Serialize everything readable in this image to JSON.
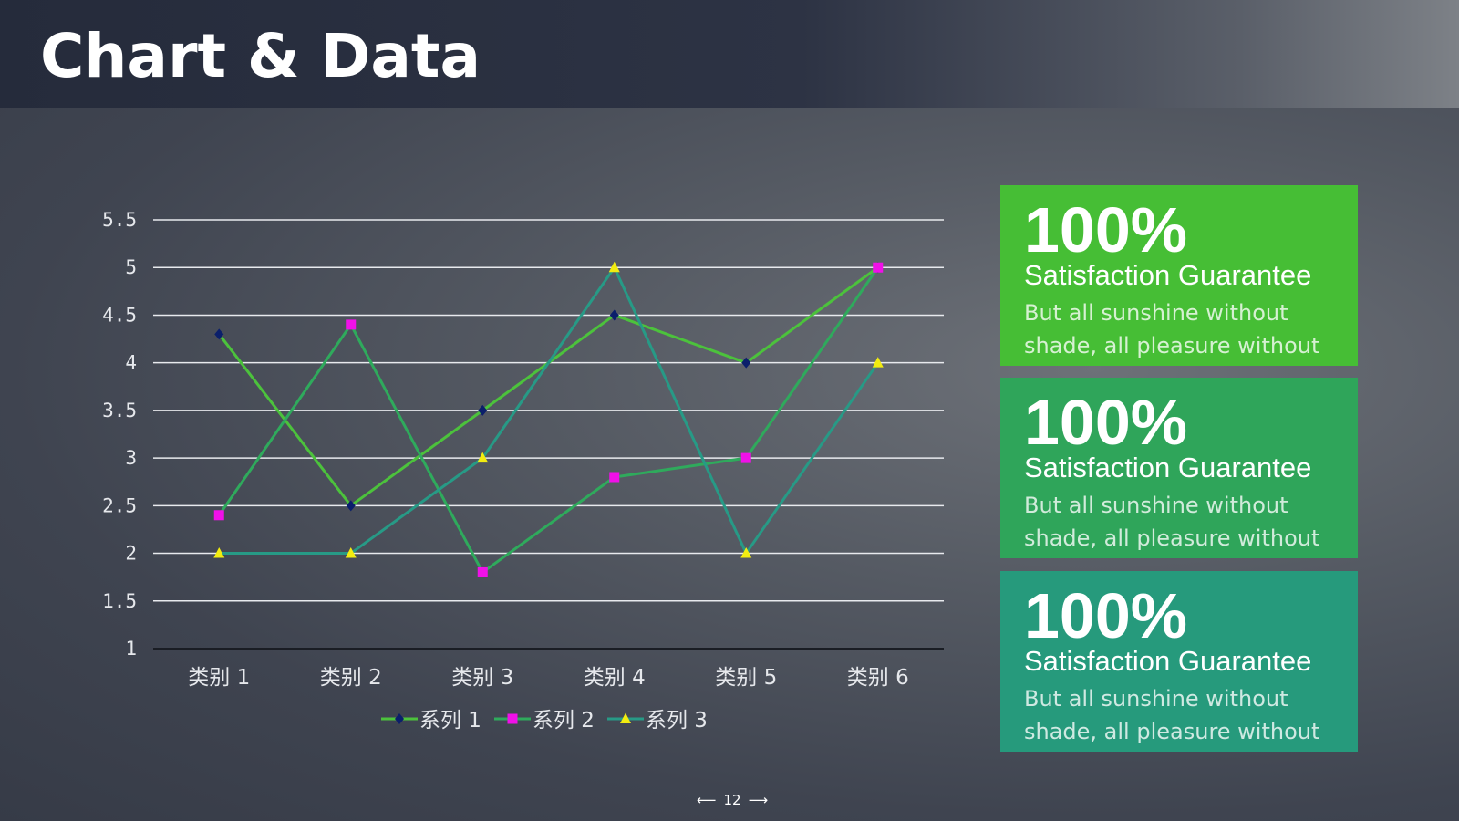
{
  "header": {
    "title": "Chart & Data"
  },
  "chart_data": {
    "type": "line",
    "categories": [
      "类别 1",
      "类别 2",
      "类别 3",
      "类别 4",
      "类别 5",
      "类别 6"
    ],
    "series": [
      {
        "name": "系列 1",
        "values": [
          4.3,
          2.5,
          3.5,
          4.5,
          4.0,
          5.0
        ],
        "color": "#4cc23c",
        "marker": "diamond",
        "marker_color": "#0b1f6b"
      },
      {
        "name": "系列 2",
        "values": [
          2.4,
          4.4,
          1.8,
          2.8,
          3.0,
          5.0
        ],
        "color": "#2faa5c",
        "marker": "square",
        "marker_color": "#f010e8"
      },
      {
        "name": "系列 3",
        "values": [
          2.0,
          2.0,
          3.0,
          5.0,
          2.0,
          4.0
        ],
        "color": "#279a86",
        "marker": "triangle",
        "marker_color": "#f2ec10"
      }
    ],
    "yticks": [
      "1",
      "1.5",
      "2",
      "2.5",
      "3",
      "3.5",
      "4",
      "4.5",
      "5",
      "5.5"
    ],
    "ylim": [
      1,
      5.5
    ],
    "grid": true,
    "legend": "bottom",
    "title": "",
    "xlabel": "",
    "ylabel": ""
  },
  "cards": [
    {
      "percent": "100%",
      "heading": "Satisfaction Guarantee",
      "line1": "But all sunshine without",
      "line2": "shade, all pleasure without",
      "color": "#46be35"
    },
    {
      "percent": "100%",
      "heading": "Satisfaction Guarantee",
      "line1": "But all sunshine without",
      "line2": "shade, all pleasure without",
      "color": "#2fa55a"
    },
    {
      "percent": "100%",
      "heading": "Satisfaction Guarantee",
      "line1": "But all sunshine without",
      "line2": "shade, all pleasure without",
      "color": "#269a7c"
    }
  ],
  "pager": {
    "prev": "⟵",
    "page": "12",
    "next": "⟶"
  }
}
